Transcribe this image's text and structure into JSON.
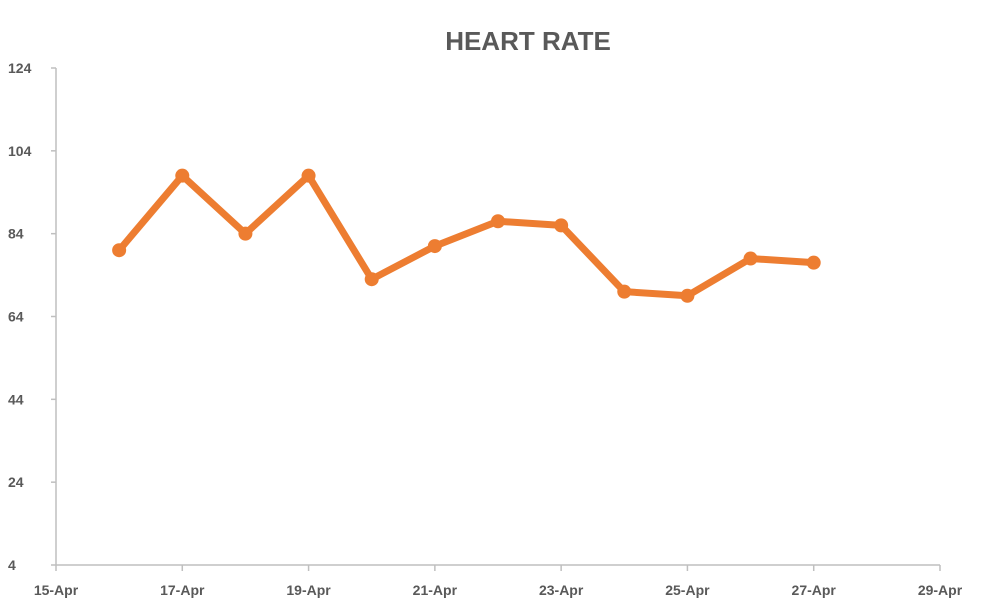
{
  "chart_data": {
    "type": "line",
    "title": "HEART RATE",
    "xlabel": "",
    "ylabel": "",
    "x_tick_labels": [
      "15-Apr",
      "17-Apr",
      "19-Apr",
      "21-Apr",
      "23-Apr",
      "25-Apr",
      "27-Apr",
      "29-Apr"
    ],
    "x_ticks": [
      "2024-04-15",
      "2024-04-17",
      "2024-04-19",
      "2024-04-21",
      "2024-04-23",
      "2024-04-25",
      "2024-04-27",
      "2024-04-29"
    ],
    "y_ticks": [
      4,
      24,
      44,
      64,
      84,
      104,
      124
    ],
    "xlim": [
      "2024-04-15",
      "2024-04-29"
    ],
    "ylim": [
      4,
      124
    ],
    "grid": false,
    "series": [
      {
        "color": "#ed7d31",
        "x": [
          "2024-04-16",
          "2024-04-17",
          "2024-04-18",
          "2024-04-19",
          "2024-04-20",
          "2024-04-21",
          "2024-04-22",
          "2024-04-23",
          "2024-04-24",
          "2024-04-25",
          "2024-04-26",
          "2024-04-27"
        ],
        "values": [
          80,
          98,
          84,
          98,
          73,
          81,
          87,
          86,
          70,
          69,
          78,
          77
        ]
      }
    ]
  }
}
